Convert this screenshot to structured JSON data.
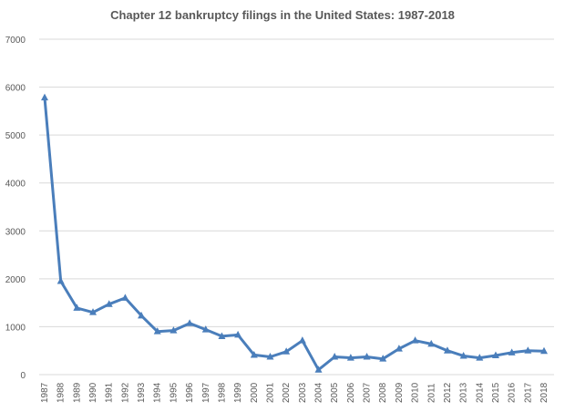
{
  "chart_data": {
    "type": "line",
    "title": "Chapter 12 bankruptcy filings in the United States: 1987-2018",
    "xlabel": "",
    "ylabel": "",
    "ylim": [
      0,
      7000
    ],
    "yticks": [
      0,
      1000,
      2000,
      3000,
      4000,
      5000,
      6000,
      7000
    ],
    "grid": true,
    "legend": "none",
    "categories": [
      "1987",
      "1988",
      "1989",
      "1990",
      "1991",
      "1992",
      "1993",
      "1994",
      "1995",
      "1996",
      "1997",
      "1998",
      "1999",
      "2000",
      "2001",
      "2002",
      "2003",
      "2004",
      "2005",
      "2006",
      "2007",
      "2008",
      "2009",
      "2010",
      "2011",
      "2012",
      "2013",
      "2014",
      "2015",
      "2016",
      "2017",
      "2018"
    ],
    "series": [
      {
        "name": "Chapter 12 filings",
        "color": "#4a7ebb",
        "values": [
          5780,
          1950,
          1390,
          1300,
          1470,
          1600,
          1230,
          900,
          920,
          1070,
          940,
          800,
          830,
          410,
          370,
          480,
          710,
          100,
          370,
          350,
          370,
          330,
          540,
          710,
          640,
          500,
          390,
          350,
          400,
          460,
          500,
          490
        ]
      }
    ]
  }
}
